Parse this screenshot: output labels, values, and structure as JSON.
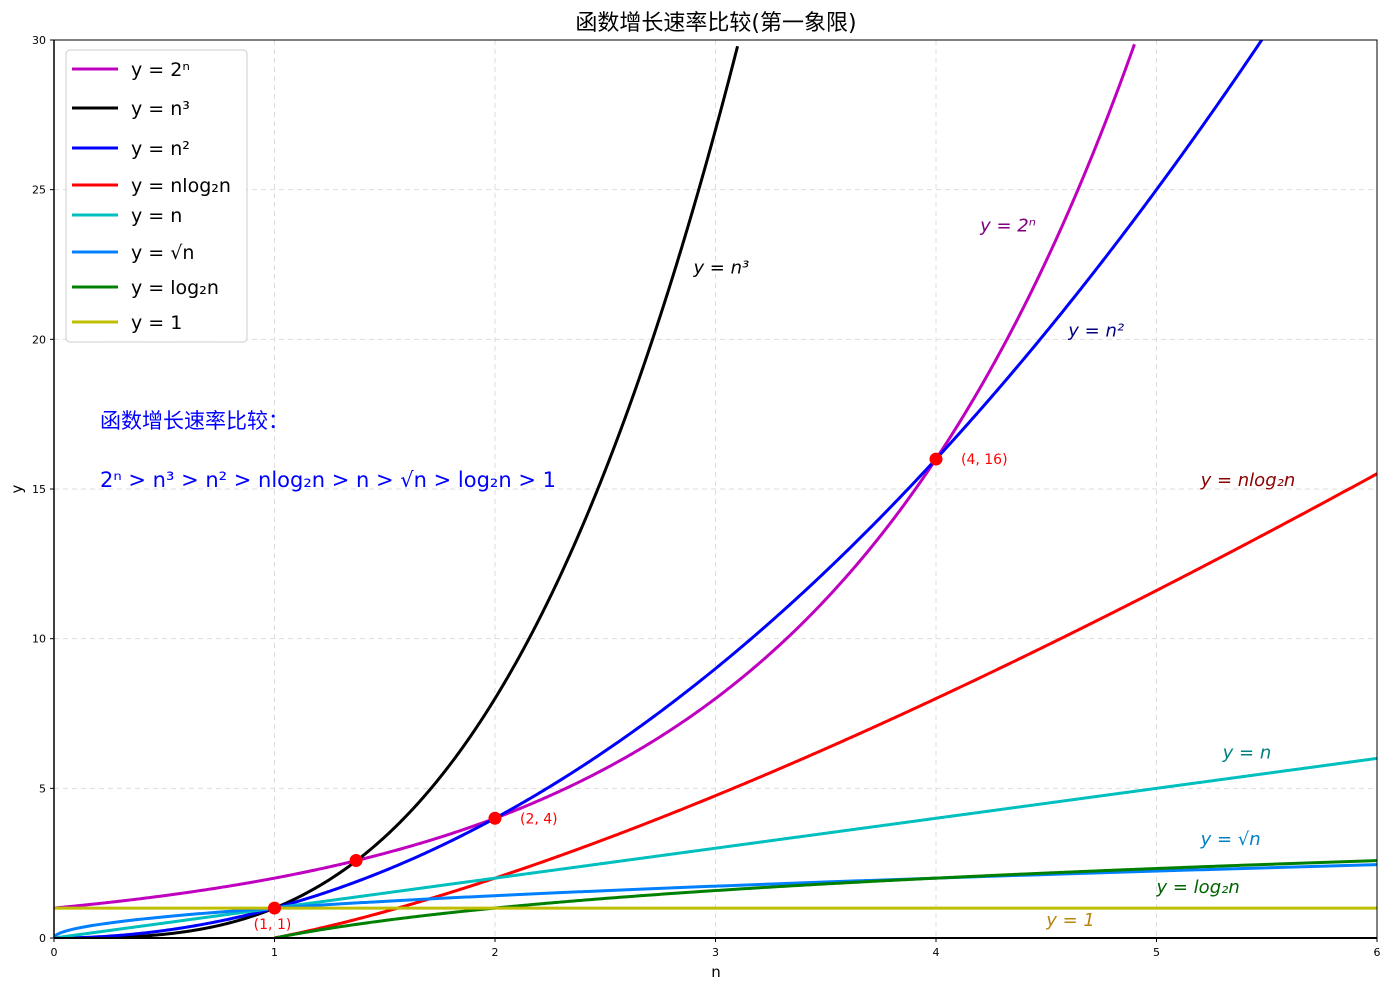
{
  "chart_data": {
    "type": "line",
    "title": "函数增长速率比较(第一象限)",
    "xlabel": "n",
    "ylabel": "y",
    "xlim": [
      0,
      6
    ],
    "ylim": [
      0,
      30
    ],
    "x_ticks": [
      "0",
      "1",
      "2",
      "3",
      "4",
      "5",
      "6"
    ],
    "y_ticks": [
      "0",
      "5",
      "10",
      "15",
      "20",
      "25",
      "30"
    ],
    "grid": true,
    "legend_position": "top-left",
    "series": [
      {
        "key": "exp2",
        "name": "y = 2ⁿ",
        "color": "#bf00bf",
        "x": [
          0,
          0.5,
          1,
          1.5,
          2,
          2.5,
          3,
          3.5,
          4,
          4.5,
          4.9
        ],
        "y": [
          1,
          1.41,
          2,
          2.83,
          4,
          5.66,
          8,
          11.31,
          16,
          22.63,
          29.86
        ]
      },
      {
        "key": "cube",
        "name": "y = n³",
        "color": "#000000",
        "x": [
          0,
          0.5,
          1,
          1.5,
          2,
          2.5,
          3,
          3.1
        ],
        "y": [
          0,
          0.13,
          1,
          3.38,
          8,
          15.63,
          27,
          29.79
        ]
      },
      {
        "key": "square",
        "name": "y = n²",
        "color": "#0000ff",
        "x": [
          0,
          1,
          2,
          3,
          4,
          5,
          5.48
        ],
        "y": [
          0,
          1,
          4,
          9,
          16,
          25,
          30.03
        ]
      },
      {
        "key": "nlogn",
        "name": "y = nlog₂n",
        "color": "#ff0000",
        "x": [
          1,
          2,
          3,
          4,
          5,
          6
        ],
        "y": [
          0,
          2,
          4.75,
          8,
          11.61,
          15.51
        ]
      },
      {
        "key": "linear",
        "name": "y = n",
        "color": "#00bfbf",
        "x": [
          0,
          6
        ],
        "y": [
          0,
          6
        ]
      },
      {
        "key": "sqrt",
        "name": "y = √n",
        "color": "#0080ff",
        "x": [
          0,
          0.1,
          0.25,
          0.5,
          1,
          2,
          3,
          4,
          5,
          6
        ],
        "y": [
          0,
          0.32,
          0.5,
          0.71,
          1,
          1.41,
          1.73,
          2,
          2.24,
          2.45
        ]
      },
      {
        "key": "log",
        "name": "y = log₂n",
        "color": "#008000",
        "x": [
          1,
          1.5,
          2,
          3,
          4,
          5,
          6
        ],
        "y": [
          0,
          0.58,
          1,
          1.58,
          2,
          2.32,
          2.58
        ]
      },
      {
        "key": "const",
        "name": "y = 1",
        "color": "#bfbf00",
        "x": [
          0,
          6
        ],
        "y": [
          1,
          1
        ]
      }
    ],
    "highlight_points": [
      {
        "x": 1,
        "y": 1,
        "label": "(1, 1)"
      },
      {
        "x": 1.37,
        "y": 2.59,
        "label": ""
      },
      {
        "x": 2,
        "y": 4,
        "label": "(2, 4)"
      },
      {
        "x": 4,
        "y": 16,
        "label": "(4, 16)"
      }
    ],
    "annotations": {
      "heading": "函数增长速率比较：",
      "inequality": "2ⁿ > n³ > n² > nlog₂n > n > √n > log₂n > 1",
      "curve_labels": [
        {
          "text": "y = n³",
          "x": 2.9,
          "y": 22.2,
          "color": "#000000"
        },
        {
          "text": "y = 2ⁿ",
          "x": 4.2,
          "y": 23.6,
          "color": "#800080"
        },
        {
          "text": "y = n²",
          "x": 4.6,
          "y": 20.1,
          "color": "#000080"
        },
        {
          "text": "y = nlog₂n",
          "x": 5.2,
          "y": 15.1,
          "color": "#8b0000"
        },
        {
          "text": "y = n",
          "x": 5.3,
          "y": 6.0,
          "color": "#008080"
        },
        {
          "text": "y = √n",
          "x": 5.2,
          "y": 3.1,
          "color": "#0080c0"
        },
        {
          "text": "y = log₂n",
          "x": 5.0,
          "y": 1.5,
          "color": "#006400"
        },
        {
          "text": "y = 1",
          "x": 4.5,
          "y": 0.4,
          "color": "#b8860b"
        }
      ]
    }
  }
}
